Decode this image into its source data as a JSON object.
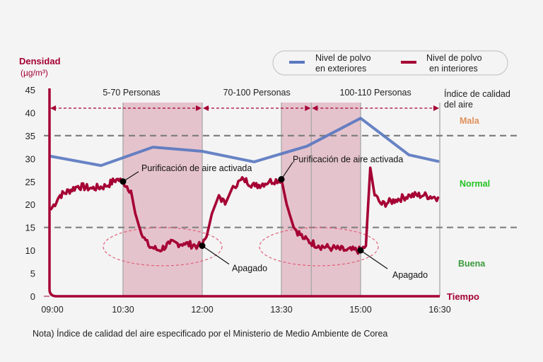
{
  "chart_data": {
    "type": "line",
    "ylabel": "Densidad",
    "yunit": "(µg/m³)",
    "xlabel": "Tiempo",
    "ylim": [
      0,
      45
    ],
    "yticks": [
      0,
      5,
      10,
      15,
      20,
      25,
      30,
      35,
      40,
      45
    ],
    "xticks": [
      "09:00",
      "10:30",
      "12:00",
      "13:30",
      "15:00",
      "16:30"
    ],
    "xlim": [
      "09:00",
      "16:30"
    ],
    "grid": false,
    "legend_position": "top-right",
    "legend": [
      {
        "line1": "Nivel de polvo",
        "line2": "en exteriores",
        "color": "#5a78c0"
      },
      {
        "line1": "Nivel de polvo",
        "line2": "en interiores",
        "color": "#a50034"
      }
    ],
    "series": [
      {
        "name": "Nivel de polvo en exteriores",
        "color": "#5a78c0",
        "points": [
          [
            "09:02",
            30.5
          ],
          [
            "10:03",
            28.5
          ],
          [
            "11:04",
            32.5
          ],
          [
            "12:00",
            31.6
          ],
          [
            "12:59",
            29.3
          ],
          [
            "13:59",
            32.7
          ],
          [
            "15:00",
            38.8
          ],
          [
            "15:55",
            30.8
          ],
          [
            "16:28",
            29.4
          ]
        ]
      },
      {
        "name": "Nivel de polvo en interiores",
        "color": "#a50034",
        "points": [
          [
            "09:02",
            19
          ],
          [
            "09:13",
            22
          ],
          [
            "09:35",
            24
          ],
          [
            "09:52",
            23.5
          ],
          [
            "10:09",
            24
          ],
          [
            "10:22",
            25.5
          ],
          [
            "10:30",
            25
          ],
          [
            "10:39",
            23
          ],
          [
            "10:44",
            18
          ],
          [
            "10:51",
            13.5
          ],
          [
            "10:59",
            11
          ],
          [
            "11:11",
            10
          ],
          [
            "11:23",
            11.5
          ],
          [
            "11:39",
            11.5
          ],
          [
            "11:55",
            11
          ],
          [
            "12:00",
            11
          ],
          [
            "12:05",
            13
          ],
          [
            "12:11",
            18
          ],
          [
            "12:19",
            22
          ],
          [
            "12:26",
            20
          ],
          [
            "12:35",
            24
          ],
          [
            "12:47",
            25.5
          ],
          [
            "13:00",
            24
          ],
          [
            "13:16",
            25
          ],
          [
            "13:30",
            25.5
          ],
          [
            "13:36",
            20
          ],
          [
            "13:44",
            15
          ],
          [
            "13:56",
            12.5
          ],
          [
            "14:12",
            11
          ],
          [
            "14:28",
            10.5
          ],
          [
            "14:44",
            10
          ],
          [
            "15:00",
            10
          ],
          [
            "15:06",
            11
          ],
          [
            "15:11",
            28
          ],
          [
            "15:16",
            22
          ],
          [
            "15:24",
            20
          ],
          [
            "15:40",
            21
          ],
          [
            "15:56",
            22
          ],
          [
            "16:12",
            22
          ],
          [
            "16:28",
            21.5
          ]
        ]
      }
    ],
    "thresholds": [
      35,
      15
    ],
    "shaded_periods": [
      [
        "10:30",
        "12:00"
      ],
      [
        "13:30",
        "15:00"
      ]
    ],
    "extra_vertical_line": "14:04",
    "periods": [
      {
        "label": "5-70 Personas",
        "from": "09:00",
        "to": "12:00"
      },
      {
        "label": "70-100 Personas",
        "from": "12:00",
        "to": "14:04"
      },
      {
        "label": "100-110 Personas",
        "from": "14:04",
        "to": "16:30"
      }
    ],
    "annotations": [
      {
        "text": "Purificación de aire activada",
        "time": "10:30",
        "value": 25
      },
      {
        "text": "Purificación de aire activada",
        "time": "13:30",
        "value": 25.5
      },
      {
        "text": "Apagado",
        "time": "12:00",
        "value": 11
      },
      {
        "text": "Apagado",
        "time": "15:00",
        "value": 10
      }
    ],
    "aqi": {
      "title_line1": "Índice de calidad",
      "title_line2": "del aire",
      "levels": [
        {
          "label": "Mala",
          "color": "#e0905a"
        },
        {
          "label": "Normal",
          "color": "#22c322"
        },
        {
          "label": "Buena",
          "color": "#3a9a3a"
        }
      ]
    },
    "note": "Nota) Índice de calidad del aire especificado por el Ministerio de Medio Ambiente de Corea"
  }
}
